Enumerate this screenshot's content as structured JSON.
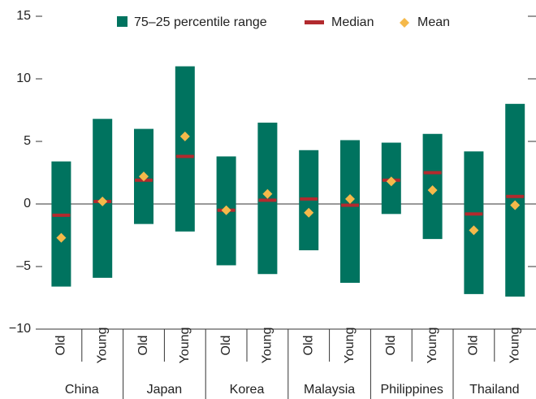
{
  "chart_data": {
    "type": "range",
    "groups": [
      "China",
      "Japan",
      "Korea",
      "Malaysia",
      "Philippines",
      "Thailand"
    ],
    "categories": [
      "Old",
      "Young",
      "Old",
      "Young",
      "Old",
      "Young",
      "Old",
      "Young",
      "Old",
      "Young",
      "Old",
      "Young"
    ],
    "series": [
      {
        "name": "75–25 percentile range",
        "color": "#00735f",
        "high": [
          3.4,
          6.8,
          6.0,
          11.0,
          3.8,
          6.5,
          4.3,
          5.1,
          4.9,
          5.6,
          4.2,
          8.0
        ],
        "low": [
          -6.6,
          -5.9,
          -1.6,
          -2.2,
          -4.9,
          -5.6,
          -3.7,
          -6.3,
          -0.8,
          -2.8,
          -7.2,
          -7.4
        ]
      },
      {
        "name": "Median",
        "color": "#b22a2e",
        "values": [
          -0.9,
          0.2,
          1.9,
          3.8,
          -0.5,
          0.3,
          0.4,
          -0.1,
          1.9,
          2.5,
          -0.8,
          0.6
        ]
      },
      {
        "name": "Mean",
        "color": "#f5b94a",
        "values": [
          -2.7,
          0.2,
          2.2,
          5.4,
          -0.5,
          0.8,
          -0.7,
          0.4,
          1.8,
          1.1,
          -2.1,
          -0.1
        ]
      }
    ],
    "ylim": [
      -10,
      15
    ],
    "yticks": [
      {
        "value": -10,
        "label": "−10"
      },
      {
        "value": -5,
        "label": "–5"
      },
      0,
      5,
      10,
      15
    ]
  }
}
